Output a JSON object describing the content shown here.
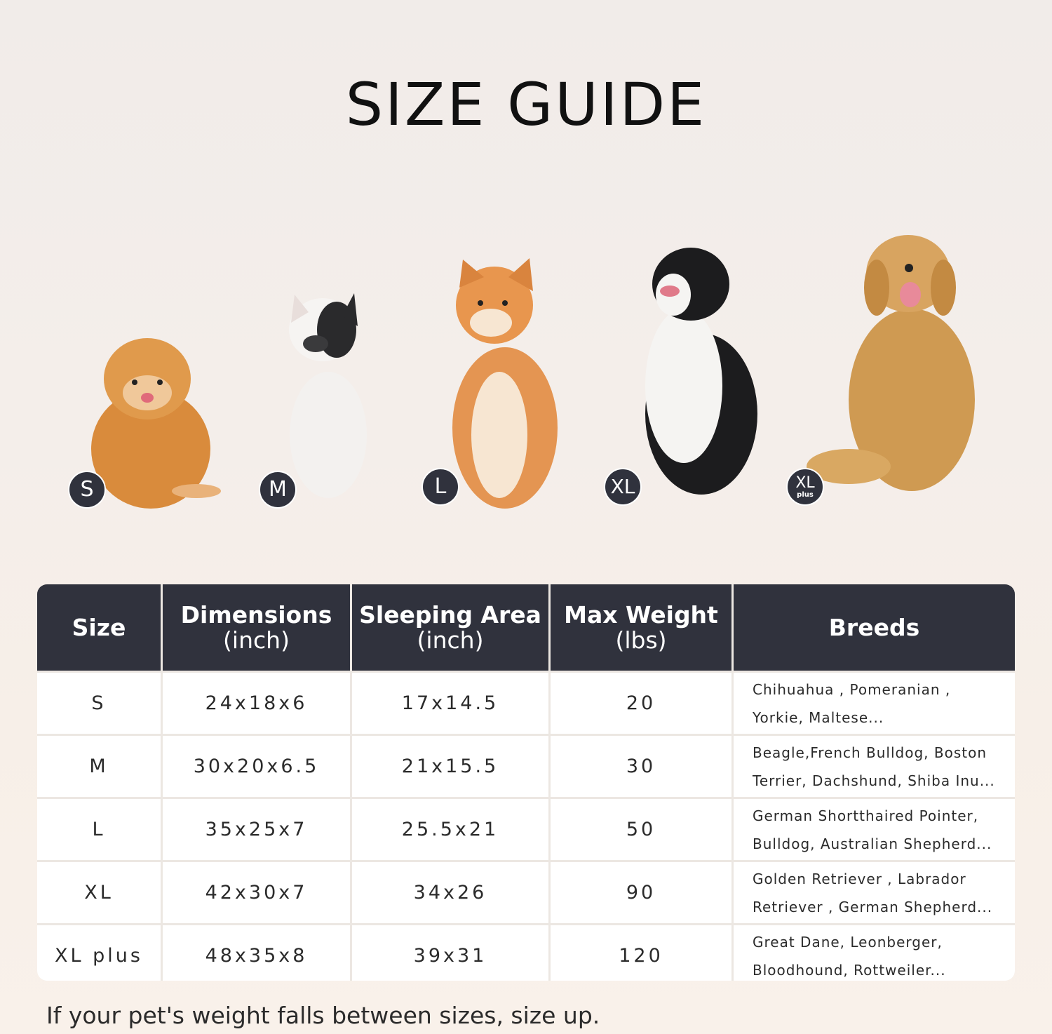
{
  "title": "SIZE GUIDE",
  "colors": {
    "header_bg": "#30323d",
    "badge_bg": "#30323d",
    "grid": "#ece7e2"
  },
  "badges": [
    {
      "label": "S",
      "sub": ""
    },
    {
      "label": "M",
      "sub": ""
    },
    {
      "label": "L",
      "sub": ""
    },
    {
      "label": "XL",
      "sub": ""
    },
    {
      "label": "XL",
      "sub": "plus"
    }
  ],
  "table": {
    "headers": [
      {
        "line1": "Size",
        "line2": ""
      },
      {
        "line1": "Dimensions",
        "line2": "(inch)"
      },
      {
        "line1": "Sleeping Area",
        "line2": "(inch)"
      },
      {
        "line1": "Max Weight",
        "line2": "(lbs)"
      },
      {
        "line1": "Breeds",
        "line2": ""
      }
    ],
    "rows": [
      {
        "size": "S",
        "dimensions": "24x18x6",
        "sleeping_area": "17x14.5",
        "max_weight": "20",
        "breeds_1": "Chihuahua , Pomeranian ,",
        "breeds_2": "Yorkie, Maltese..."
      },
      {
        "size": "M",
        "dimensions": "30x20x6.5",
        "sleeping_area": "21x15.5",
        "max_weight": "30",
        "breeds_1": "Beagle,French Bulldog, Boston",
        "breeds_2": "Terrier, Dachshund, Shiba Inu..."
      },
      {
        "size": "L",
        "dimensions": "35x25x7",
        "sleeping_area": "25.5x21",
        "max_weight": "50",
        "breeds_1": "German Shortthaired Pointer,",
        "breeds_2": "Bulldog, Australian Shepherd..."
      },
      {
        "size": "XL",
        "dimensions": "42x30x7",
        "sleeping_area": "34x26",
        "max_weight": "90",
        "breeds_1": "Golden Retriever , Labrador",
        "breeds_2": "Retriever , German Shepherd..."
      },
      {
        "size": "XL plus",
        "dimensions": "48x35x8",
        "sleeping_area": "39x31",
        "max_weight": "120",
        "breeds_1": "Great Dane, Leonberger,",
        "breeds_2": "Bloodhound, Rottweiler..."
      }
    ]
  },
  "note": "If your pet's weight falls between sizes, size up."
}
